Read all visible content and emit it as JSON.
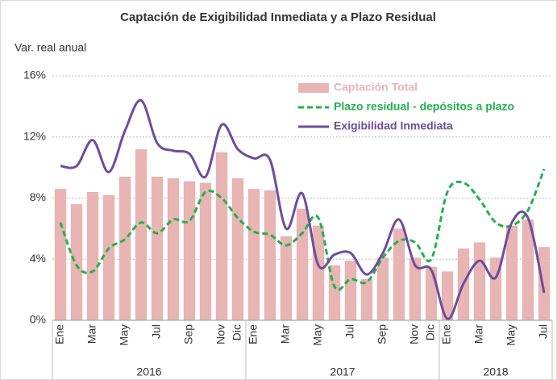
{
  "chart_data": {
    "type": "bar",
    "title": "Captación  de Exigibilidad  Inmediata  y a Plazo  Residual",
    "y_label": "Var. real anual",
    "categories": [
      "Ene",
      null,
      "Mar",
      null,
      "May",
      null,
      "Jul",
      null,
      "Sep",
      null,
      "Nov",
      "Dic",
      "Ene",
      null,
      "Mar",
      null,
      "May",
      null,
      "Jul",
      null,
      "Sep",
      null,
      "Nov",
      "Dic",
      "Ene",
      null,
      "Mar",
      null,
      "May",
      null,
      "Jul"
    ],
    "groups": [
      "2016",
      "2017",
      "2018"
    ],
    "ylim": [
      0,
      16
    ],
    "yticks": [
      {
        "value": 0,
        "label": "0%"
      },
      {
        "value": 4,
        "label": "4%"
      },
      {
        "value": 8,
        "label": "8%"
      },
      {
        "value": 12,
        "label": "12%"
      },
      {
        "value": 16,
        "label": "16%"
      }
    ],
    "grid": true,
    "legend": "top-right",
    "series": [
      {
        "name": "Captación Total",
        "type": "bar",
        "color": "#e8b4b4",
        "values": [
          8.6,
          7.6,
          8.4,
          8.2,
          9.4,
          11.2,
          9.4,
          9.3,
          9.1,
          9.0,
          11.0,
          9.3,
          8.6,
          8.5,
          5.5,
          7.3,
          6.2,
          3.6,
          3.9,
          2.7,
          4.1,
          6.0,
          4.1,
          3.5,
          3.2,
          4.7,
          5.1,
          4.1,
          6.2,
          6.6,
          4.8
        ]
      },
      {
        "name": "Plazo residual - depósitos a plazo",
        "type": "line",
        "dashed": true,
        "color": "#22b14c",
        "values": [
          6.4,
          3.6,
          3.2,
          4.7,
          5.3,
          6.4,
          5.7,
          6.6,
          6.5,
          8.4,
          8.0,
          6.7,
          5.8,
          5.6,
          4.9,
          5.7,
          6.7,
          2.2,
          2.7,
          2.5,
          4.1,
          5.2,
          5.1,
          4.0,
          8.4,
          9.0,
          7.9,
          6.4,
          6.2,
          7.2,
          9.9
        ]
      },
      {
        "name": "Exigibilidad Inmediata",
        "type": "line",
        "dashed": false,
        "color": "#6e4c9e",
        "values": [
          10.1,
          10.1,
          11.8,
          9.7,
          12.4,
          14.4,
          11.6,
          11.1,
          10.9,
          9.4,
          12.8,
          11.2,
          10.6,
          10.5,
          6.0,
          8.3,
          3.6,
          4.3,
          4.4,
          3.0,
          4.4,
          6.6,
          3.6,
          3.3,
          0.1,
          2.4,
          3.9,
          2.8,
          6.4,
          6.7,
          1.8
        ]
      }
    ]
  }
}
